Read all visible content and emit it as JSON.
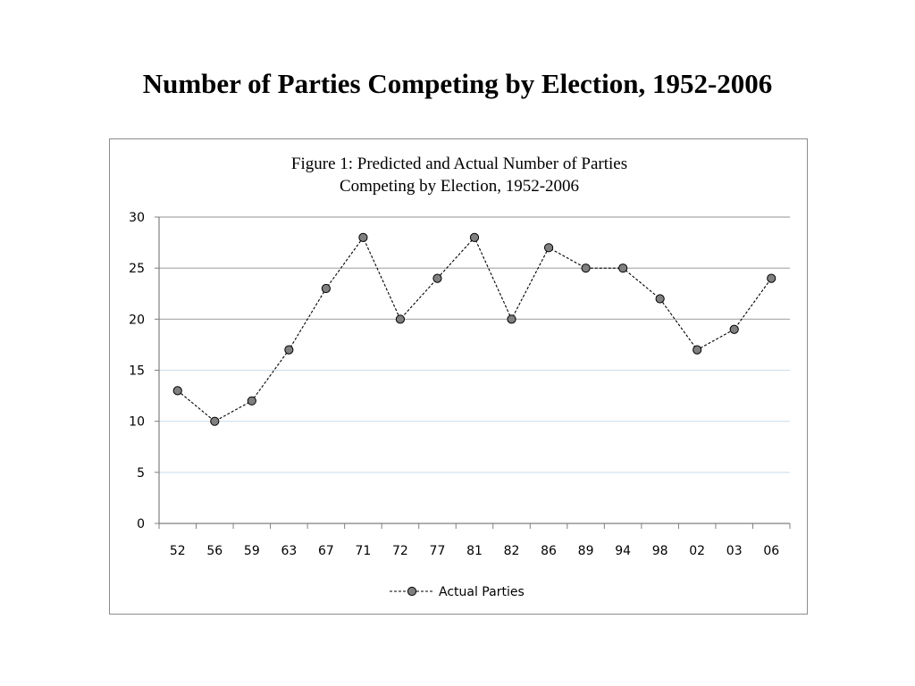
{
  "slide": {
    "title": "Number of Parties Competing by Election, 1952-2006"
  },
  "chart_data": {
    "type": "line",
    "title_lines": [
      "Figure 1: Predicted and Actual Number of Parties",
      "Competing by Election, 1952-2006"
    ],
    "xlabel": "",
    "ylabel": "",
    "categories": [
      "52",
      "56",
      "59",
      "63",
      "67",
      "71",
      "72",
      "77",
      "81",
      "82",
      "86",
      "89",
      "94",
      "98",
      "02",
      "03",
      "06"
    ],
    "series": [
      {
        "name": "Actual Parties",
        "values": [
          13,
          10,
          12,
          17,
          23,
          28,
          20,
          24,
          28,
          20,
          27,
          25,
          25,
          22,
          17,
          19,
          24
        ],
        "line_style": "dashed",
        "line_color": "#000000",
        "marker": "circle",
        "marker_fill": "#808080",
        "marker_stroke": "#000000"
      }
    ],
    "ylim": [
      0,
      30
    ],
    "yticks": [
      0,
      5,
      10,
      15,
      20,
      25,
      30
    ],
    "grid": true,
    "legend": "bottom",
    "colors": {
      "grid_major": "#a6a6a6",
      "grid_minor": "#c9dcec",
      "axis": "#7f7f7f"
    }
  }
}
